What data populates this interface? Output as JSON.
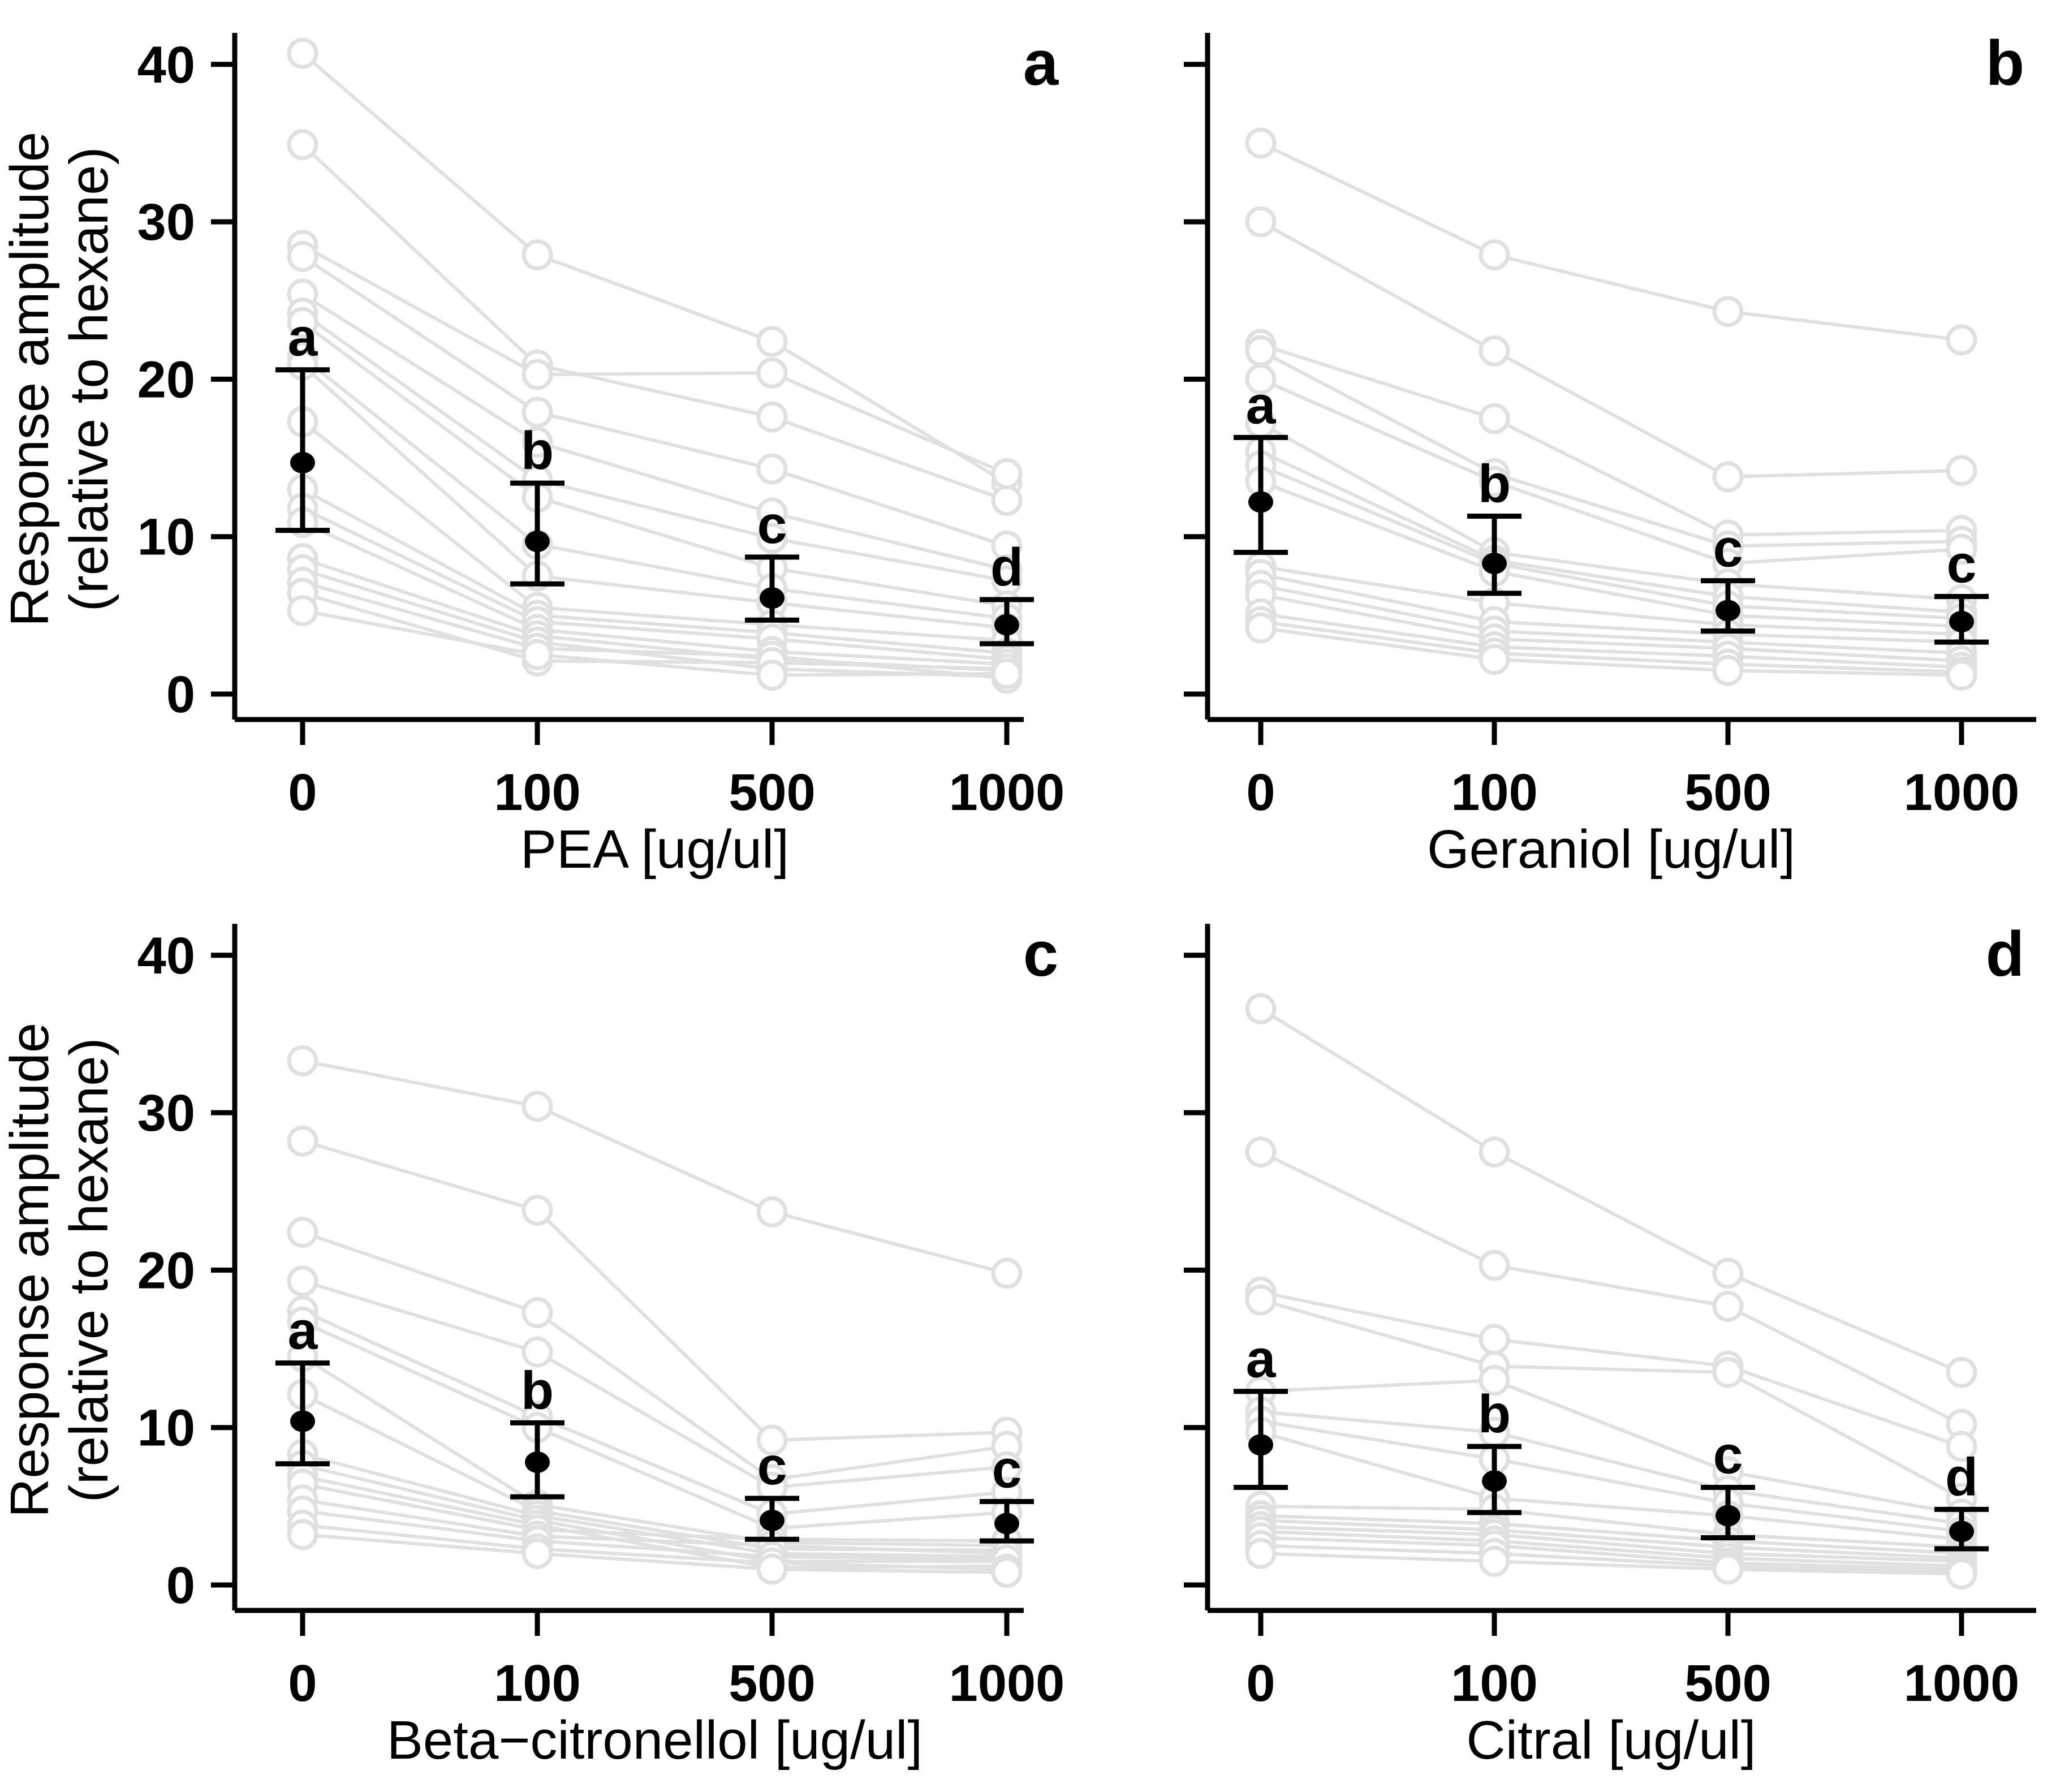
{
  "figure": {
    "y_axis_label": {
      "line1": "Response amplitude",
      "line2": "(relative to hexane)"
    },
    "y_ticks": [
      0,
      10,
      20,
      30,
      40
    ],
    "colors": {
      "individual_lines": "#e0e0e0",
      "individual_circle_fill": "#ffffff",
      "mean_points": "#000000",
      "axis": "#000000",
      "background": "#ffffff"
    }
  },
  "chart_data": [
    {
      "type": "line",
      "panel_label": "a",
      "xlabel": "PEA [ug/ul]",
      "ylabel": "Response amplitude (relative to hexane)",
      "x_categories": [
        "0",
        "100",
        "500",
        "1000"
      ],
      "ylim": [
        0,
        42
      ],
      "y_ticks": [
        0,
        10,
        20,
        30,
        40
      ],
      "grid": false,
      "means": [
        14.7,
        9.7,
        6.1,
        4.4
      ],
      "ci_low": [
        10.4,
        7.0,
        4.7,
        3.2
      ],
      "ci_high": [
        20.6,
        13.4,
        8.7,
        6.0
      ],
      "sig_letters": [
        "a",
        "b",
        "c",
        "d"
      ],
      "individuals": [
        [
          40.7,
          27.9,
          22.4,
          13.4
        ],
        [
          34.9,
          20.9,
          17.6,
          12.3
        ],
        [
          28.5,
          20.3,
          20.4,
          14.0
        ],
        [
          27.8,
          17.9,
          14.3,
          9.4
        ],
        [
          25.4,
          16.0,
          11.5,
          7.9
        ],
        [
          24.2,
          13.6,
          9.9,
          7.2
        ],
        [
          23.6,
          12.5,
          8.0,
          5.6
        ],
        [
          21.4,
          9.5,
          6.7,
          4.8
        ],
        [
          20.9,
          7.5,
          5.8,
          4.2
        ],
        [
          17.3,
          5.5,
          4.4,
          3.4
        ],
        [
          13.0,
          5.0,
          3.9,
          2.6
        ],
        [
          11.8,
          4.6,
          3.5,
          2.2
        ],
        [
          10.9,
          4.1,
          2.7,
          1.9
        ],
        [
          8.6,
          3.7,
          2.2,
          1.5
        ],
        [
          7.9,
          3.3,
          1.6,
          1.1
        ],
        [
          7.1,
          2.9,
          2.4,
          1.0
        ],
        [
          6.4,
          2.1,
          2.0,
          1.6
        ],
        [
          5.3,
          2.5,
          1.2,
          1.3
        ]
      ]
    },
    {
      "type": "line",
      "panel_label": "b",
      "xlabel": "Geraniol [ug/ul]",
      "ylabel": "Response amplitude (relative to hexane)",
      "x_categories": [
        "0",
        "100",
        "500",
        "1000"
      ],
      "ylim": [
        0,
        42
      ],
      "y_ticks": [
        0,
        10,
        20,
        30,
        40
      ],
      "grid": false,
      "means": [
        12.2,
        8.3,
        5.3,
        4.6
      ],
      "ci_low": [
        9.0,
        6.4,
        4.0,
        3.3
      ],
      "ci_high": [
        16.3,
        11.3,
        7.2,
        6.2
      ],
      "sig_letters": [
        "a",
        "b",
        "c",
        "c"
      ],
      "individuals": [
        [
          35.0,
          27.9,
          24.3,
          22.5
        ],
        [
          30.0,
          21.8,
          13.8,
          14.2
        ],
        [
          22.2,
          17.5,
          10.1,
          10.4
        ],
        [
          21.8,
          14.0,
          9.4,
          9.7
        ],
        [
          20.0,
          13.5,
          8.3,
          9.2
        ],
        [
          17.2,
          9.0,
          7.0,
          6.0
        ],
        [
          15.4,
          8.5,
          6.2,
          5.2
        ],
        [
          14.5,
          8.3,
          5.6,
          4.8
        ],
        [
          13.5,
          7.8,
          5.0,
          4.3
        ],
        [
          8.1,
          5.8,
          4.4,
          3.8
        ],
        [
          7.6,
          4.6,
          3.8,
          3.3
        ],
        [
          6.9,
          4.0,
          3.3,
          2.6
        ],
        [
          6.3,
          3.5,
          2.9,
          2.1
        ],
        [
          5.1,
          3.0,
          2.4,
          1.7
        ],
        [
          4.6,
          2.6,
          1.9,
          1.4
        ],
        [
          4.2,
          2.2,
          1.5,
          1.2
        ]
      ]
    },
    {
      "type": "line",
      "panel_label": "c",
      "xlabel": "Beta−citronellol [ug/ul]",
      "ylabel": "Response amplitude (relative to hexane)",
      "x_categories": [
        "0",
        "100",
        "500",
        "1000"
      ],
      "ylim": [
        0,
        42
      ],
      "y_ticks": [
        0,
        10,
        20,
        30,
        40
      ],
      "grid": false,
      "means": [
        10.4,
        7.8,
        4.1,
        3.9
      ],
      "ci_low": [
        7.7,
        5.6,
        2.9,
        2.8
      ],
      "ci_high": [
        14.1,
        10.3,
        5.5,
        5.3
      ],
      "sig_letters": [
        "a",
        "b",
        "c",
        "c"
      ],
      "individuals": [
        [
          33.3,
          30.4,
          23.7,
          19.8
        ],
        [
          28.2,
          23.8,
          9.2,
          9.7
        ],
        [
          22.4,
          17.3,
          6.7,
          8.8
        ],
        [
          19.3,
          14.8,
          6.2,
          7.5
        ],
        [
          17.4,
          10.7,
          4.5,
          5.9
        ],
        [
          16.7,
          10.0,
          3.6,
          4.6
        ],
        [
          14.5,
          5.1,
          2.7,
          2.5
        ],
        [
          12.1,
          4.7,
          2.3,
          2.2
        ],
        [
          8.3,
          4.4,
          2.0,
          1.8
        ],
        [
          7.6,
          4.1,
          1.5,
          1.5
        ],
        [
          6.9,
          3.8,
          1.1,
          1.2
        ],
        [
          6.4,
          3.5,
          2.9,
          2.8
        ],
        [
          5.4,
          3.1,
          2.5,
          2.0
        ],
        [
          4.7,
          2.8,
          1.8,
          1.6
        ],
        [
          3.8,
          2.3,
          1.4,
          1.0
        ],
        [
          3.2,
          2.0,
          1.0,
          0.8
        ]
      ]
    },
    {
      "type": "line",
      "panel_label": "d",
      "xlabel": "Citral [ug/ul]",
      "ylabel": "Response amplitude (relative to hexane)",
      "x_categories": [
        "0",
        "100",
        "500",
        "1000"
      ],
      "ylim": [
        0,
        42
      ],
      "y_ticks": [
        0,
        10,
        20,
        30,
        40
      ],
      "grid": false,
      "means": [
        8.9,
        6.6,
        4.4,
        3.4
      ],
      "ci_low": [
        6.2,
        4.6,
        3.0,
        2.3
      ],
      "ci_high": [
        12.3,
        8.8,
        6.2,
        4.8
      ],
      "sig_letters": [
        "a",
        "b",
        "c",
        "d"
      ],
      "individuals": [
        [
          36.6,
          27.5,
          19.8,
          13.5
        ],
        [
          27.5,
          20.3,
          17.7,
          10.2
        ],
        [
          18.6,
          15.6,
          13.9,
          8.8
        ],
        [
          18.1,
          13.9,
          13.5,
          5.5
        ],
        [
          12.3,
          13.0,
          7.2,
          4.5
        ],
        [
          11.0,
          9.7,
          6.0,
          3.9
        ],
        [
          10.4,
          8.0,
          5.2,
          3.4
        ],
        [
          9.7,
          5.5,
          4.4,
          2.9
        ],
        [
          5.0,
          4.8,
          3.2,
          2.4
        ],
        [
          4.4,
          3.9,
          2.8,
          2.0
        ],
        [
          4.1,
          3.5,
          2.4,
          1.7
        ],
        [
          3.7,
          3.2,
          2.0,
          1.5
        ],
        [
          3.4,
          2.8,
          1.7,
          1.2
        ],
        [
          3.0,
          2.5,
          1.4,
          1.0
        ],
        [
          2.5,
          2.0,
          1.2,
          0.9
        ],
        [
          2.0,
          1.5,
          1.0,
          0.7
        ]
      ]
    }
  ]
}
